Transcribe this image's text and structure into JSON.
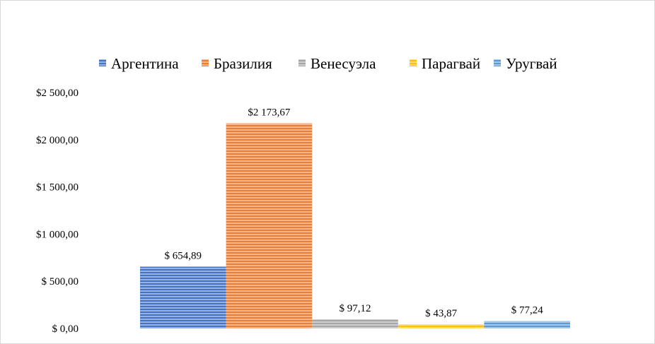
{
  "chart_data": {
    "type": "bar",
    "title": "",
    "xlabel": "",
    "ylabel": "",
    "ylim": [
      0,
      2500
    ],
    "yticks": [
      "$ 0,00",
      "$ 500,00",
      "$1 000,00",
      "$1 500,00",
      "$2 000,00",
      "$2 500,00"
    ],
    "ytick_values": [
      0,
      500,
      1000,
      1500,
      2000,
      2500
    ],
    "legend_position": "top",
    "grid": false,
    "series": [
      {
        "name": "Аргентина",
        "value": 654.89,
        "label": "$ 654,89",
        "color": "#4472c4"
      },
      {
        "name": "Бразилия",
        "value": 2173.67,
        "label": "$2 173,67",
        "color": "#ed7d31"
      },
      {
        "name": "Венесуэла",
        "value": 97.12,
        "label": "$ 97,12",
        "color": "#a5a5a5"
      },
      {
        "name": "Парагвай",
        "value": 43.87,
        "label": "$ 43,87",
        "color": "#ffc000"
      },
      {
        "name": "Уругвай",
        "value": 77.24,
        "label": "$ 77,24",
        "color": "#5b9bd5"
      }
    ]
  }
}
